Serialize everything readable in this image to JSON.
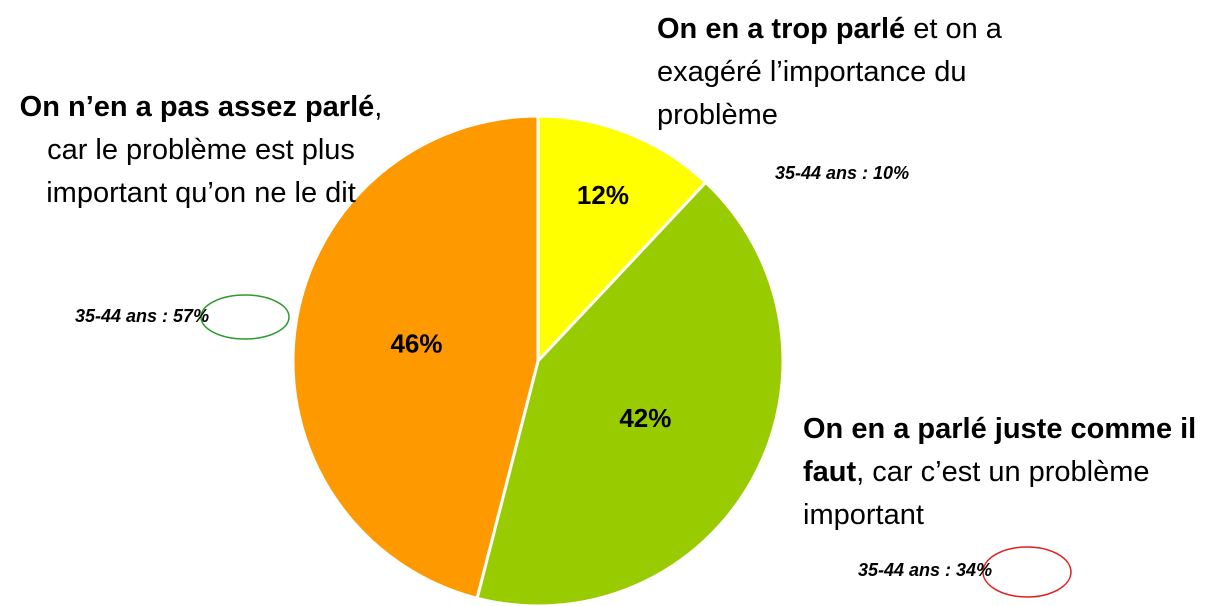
{
  "chart_data": {
    "type": "pie",
    "categories": [
      {
        "bold": "On en a trop parlé",
        "text": " et on a exagéré l’importance du problème"
      },
      {
        "bold": "On en a parlé juste comme il faut",
        "text": ", car c’est un problème important"
      },
      {
        "bold": "On n’en a pas assez parlé",
        "text": ", car le problème est plus important qu’on ne le dit"
      }
    ],
    "values": [
      12,
      42,
      46
    ],
    "value_labels": [
      "12%",
      "42%",
      "46%"
    ],
    "colors": [
      "#ffff00",
      "#99cc00",
      "#ff9900"
    ],
    "annotations": [
      "35-44 ans : 10%",
      "35-44 ans : 34%",
      "35-44 ans : 57%"
    ]
  }
}
